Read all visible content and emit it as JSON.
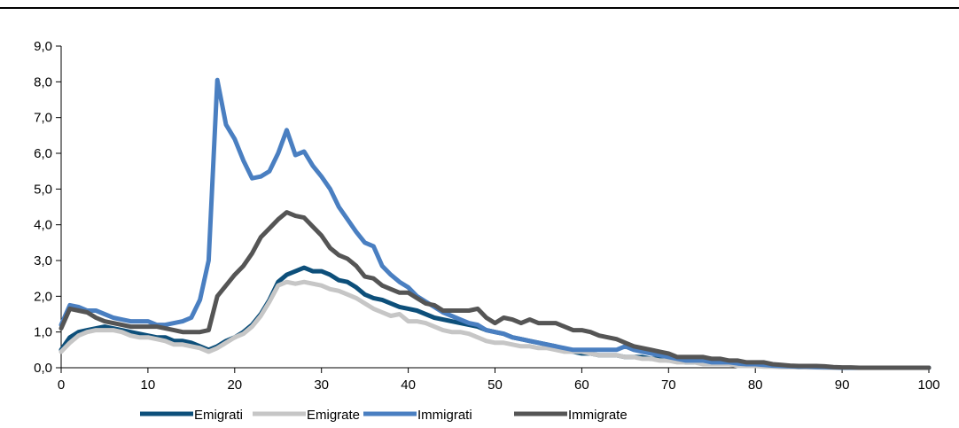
{
  "chart_data": {
    "type": "line",
    "title": "",
    "xlabel": "",
    "ylabel": "",
    "xlim": [
      0,
      100
    ],
    "ylim": [
      0,
      9
    ],
    "x_ticks": [
      "0",
      "10",
      "20",
      "30",
      "40",
      "50",
      "60",
      "70",
      "80",
      "90",
      "100"
    ],
    "y_ticks": [
      "0,0",
      "1,0",
      "2,0",
      "3,0",
      "4,0",
      "5,0",
      "6,0",
      "7,0",
      "8,0",
      "9,0"
    ],
    "grid": false,
    "legend_position": "bottom-left",
    "x": [
      0,
      1,
      2,
      3,
      4,
      5,
      6,
      7,
      8,
      9,
      10,
      11,
      12,
      13,
      14,
      15,
      16,
      17,
      18,
      19,
      20,
      21,
      22,
      23,
      24,
      25,
      26,
      27,
      28,
      29,
      30,
      31,
      32,
      33,
      34,
      35,
      36,
      37,
      38,
      39,
      40,
      41,
      42,
      43,
      44,
      45,
      46,
      47,
      48,
      49,
      50,
      51,
      52,
      53,
      54,
      55,
      56,
      57,
      58,
      59,
      60,
      61,
      62,
      63,
      64,
      65,
      66,
      67,
      68,
      69,
      70,
      71,
      72,
      73,
      74,
      75,
      76,
      77,
      78,
      79,
      80,
      81,
      82,
      83,
      84,
      85,
      86,
      87,
      88,
      89,
      90,
      91,
      92,
      93,
      94,
      95,
      96,
      97,
      98,
      99,
      100
    ],
    "series": [
      {
        "name": "Emigrati",
        "color": "#0d4f7a",
        "values": [
          0.5,
          0.85,
          1.0,
          1.05,
          1.1,
          1.15,
          1.1,
          1.05,
          1.0,
          0.95,
          0.9,
          0.85,
          0.85,
          0.75,
          0.75,
          0.7,
          0.6,
          0.5,
          0.6,
          0.75,
          0.85,
          1.0,
          1.2,
          1.5,
          1.9,
          2.4,
          2.6,
          2.7,
          2.8,
          2.7,
          2.7,
          2.6,
          2.45,
          2.4,
          2.25,
          2.05,
          1.95,
          1.9,
          1.8,
          1.7,
          1.65,
          1.6,
          1.5,
          1.4,
          1.35,
          1.3,
          1.25,
          1.2,
          1.15,
          1.05,
          1.0,
          0.95,
          0.85,
          0.8,
          0.75,
          0.7,
          0.65,
          0.6,
          0.5,
          0.45,
          0.4,
          0.4,
          0.35,
          0.35,
          0.35,
          0.3,
          0.3,
          0.3,
          0.25,
          0.25,
          0.2,
          0.2,
          0.15,
          0.15,
          0.15,
          0.1,
          0.1,
          0.1,
          0.1,
          0.1,
          0.05,
          0.05,
          0.05,
          0.03,
          0.03,
          0.02,
          0.02,
          0.02,
          0.01,
          0.01,
          0.0,
          0.0,
          0.0,
          0.0,
          0.0,
          0.0,
          0.0,
          0.0,
          0.0,
          0.0,
          0.0
        ]
      },
      {
        "name": "Emigrate",
        "color": "#c6c6c6",
        "values": [
          0.45,
          0.7,
          0.9,
          1.0,
          1.05,
          1.05,
          1.05,
          1.0,
          0.9,
          0.85,
          0.85,
          0.8,
          0.75,
          0.65,
          0.65,
          0.6,
          0.55,
          0.45,
          0.55,
          0.7,
          0.85,
          0.95,
          1.15,
          1.45,
          1.85,
          2.3,
          2.4,
          2.35,
          2.4,
          2.35,
          2.3,
          2.2,
          2.15,
          2.05,
          1.95,
          1.8,
          1.65,
          1.55,
          1.45,
          1.5,
          1.3,
          1.3,
          1.25,
          1.15,
          1.05,
          1.0,
          1.0,
          0.95,
          0.85,
          0.75,
          0.7,
          0.7,
          0.65,
          0.6,
          0.6,
          0.55,
          0.55,
          0.5,
          0.45,
          0.45,
          0.45,
          0.4,
          0.35,
          0.35,
          0.35,
          0.3,
          0.3,
          0.25,
          0.25,
          0.2,
          0.2,
          0.15,
          0.15,
          0.15,
          0.1,
          0.1,
          0.1,
          0.1,
          0.05,
          0.05,
          0.05,
          0.03,
          0.03,
          0.02,
          0.02,
          0.02,
          0.01,
          0.01,
          0.0,
          0.0,
          0.0,
          0.0,
          0.0,
          0.0,
          0.0,
          0.0,
          0.0,
          0.0,
          0.0,
          0.0,
          0.0
        ]
      },
      {
        "name": "Immigrati",
        "color": "#4a7fc1",
        "values": [
          1.2,
          1.75,
          1.7,
          1.6,
          1.6,
          1.5,
          1.4,
          1.35,
          1.3,
          1.3,
          1.3,
          1.2,
          1.2,
          1.25,
          1.3,
          1.4,
          1.9,
          3.0,
          8.05,
          6.8,
          6.4,
          5.8,
          5.3,
          5.35,
          5.5,
          6.0,
          6.65,
          5.95,
          6.05,
          5.65,
          5.35,
          5.0,
          4.5,
          4.15,
          3.8,
          3.5,
          3.4,
          2.85,
          2.6,
          2.4,
          2.25,
          2.0,
          1.85,
          1.7,
          1.55,
          1.45,
          1.35,
          1.25,
          1.2,
          1.05,
          1.0,
          0.95,
          0.85,
          0.8,
          0.75,
          0.7,
          0.65,
          0.6,
          0.55,
          0.5,
          0.5,
          0.5,
          0.5,
          0.5,
          0.5,
          0.6,
          0.5,
          0.45,
          0.4,
          0.35,
          0.3,
          0.25,
          0.2,
          0.2,
          0.2,
          0.15,
          0.15,
          0.15,
          0.12,
          0.1,
          0.1,
          0.08,
          0.06,
          0.05,
          0.04,
          0.03,
          0.03,
          0.02,
          0.02,
          0.01,
          0.0,
          0.0,
          0.0,
          0.0,
          0.0,
          0.0,
          0.0,
          0.0,
          0.0,
          0.0,
          0.0
        ]
      },
      {
        "name": "Immigrate",
        "color": "#555555",
        "values": [
          1.1,
          1.65,
          1.6,
          1.55,
          1.4,
          1.3,
          1.25,
          1.2,
          1.15,
          1.15,
          1.15,
          1.15,
          1.1,
          1.05,
          1.0,
          1.0,
          1.0,
          1.05,
          2.0,
          2.3,
          2.6,
          2.85,
          3.2,
          3.65,
          3.9,
          4.15,
          4.35,
          4.25,
          4.2,
          3.95,
          3.7,
          3.35,
          3.15,
          3.05,
          2.85,
          2.55,
          2.5,
          2.3,
          2.2,
          2.1,
          2.1,
          1.95,
          1.8,
          1.75,
          1.6,
          1.6,
          1.6,
          1.6,
          1.65,
          1.4,
          1.25,
          1.4,
          1.35,
          1.25,
          1.35,
          1.25,
          1.25,
          1.25,
          1.15,
          1.05,
          1.05,
          1.0,
          0.9,
          0.85,
          0.8,
          0.7,
          0.6,
          0.55,
          0.5,
          0.45,
          0.4,
          0.3,
          0.3,
          0.3,
          0.3,
          0.25,
          0.25,
          0.2,
          0.2,
          0.15,
          0.15,
          0.15,
          0.1,
          0.08,
          0.06,
          0.05,
          0.05,
          0.05,
          0.04,
          0.02,
          0.01,
          0.01,
          0.0,
          0.0,
          0.0,
          0.0,
          0.0,
          0.0,
          0.0,
          0.0,
          0.0
        ]
      }
    ]
  }
}
